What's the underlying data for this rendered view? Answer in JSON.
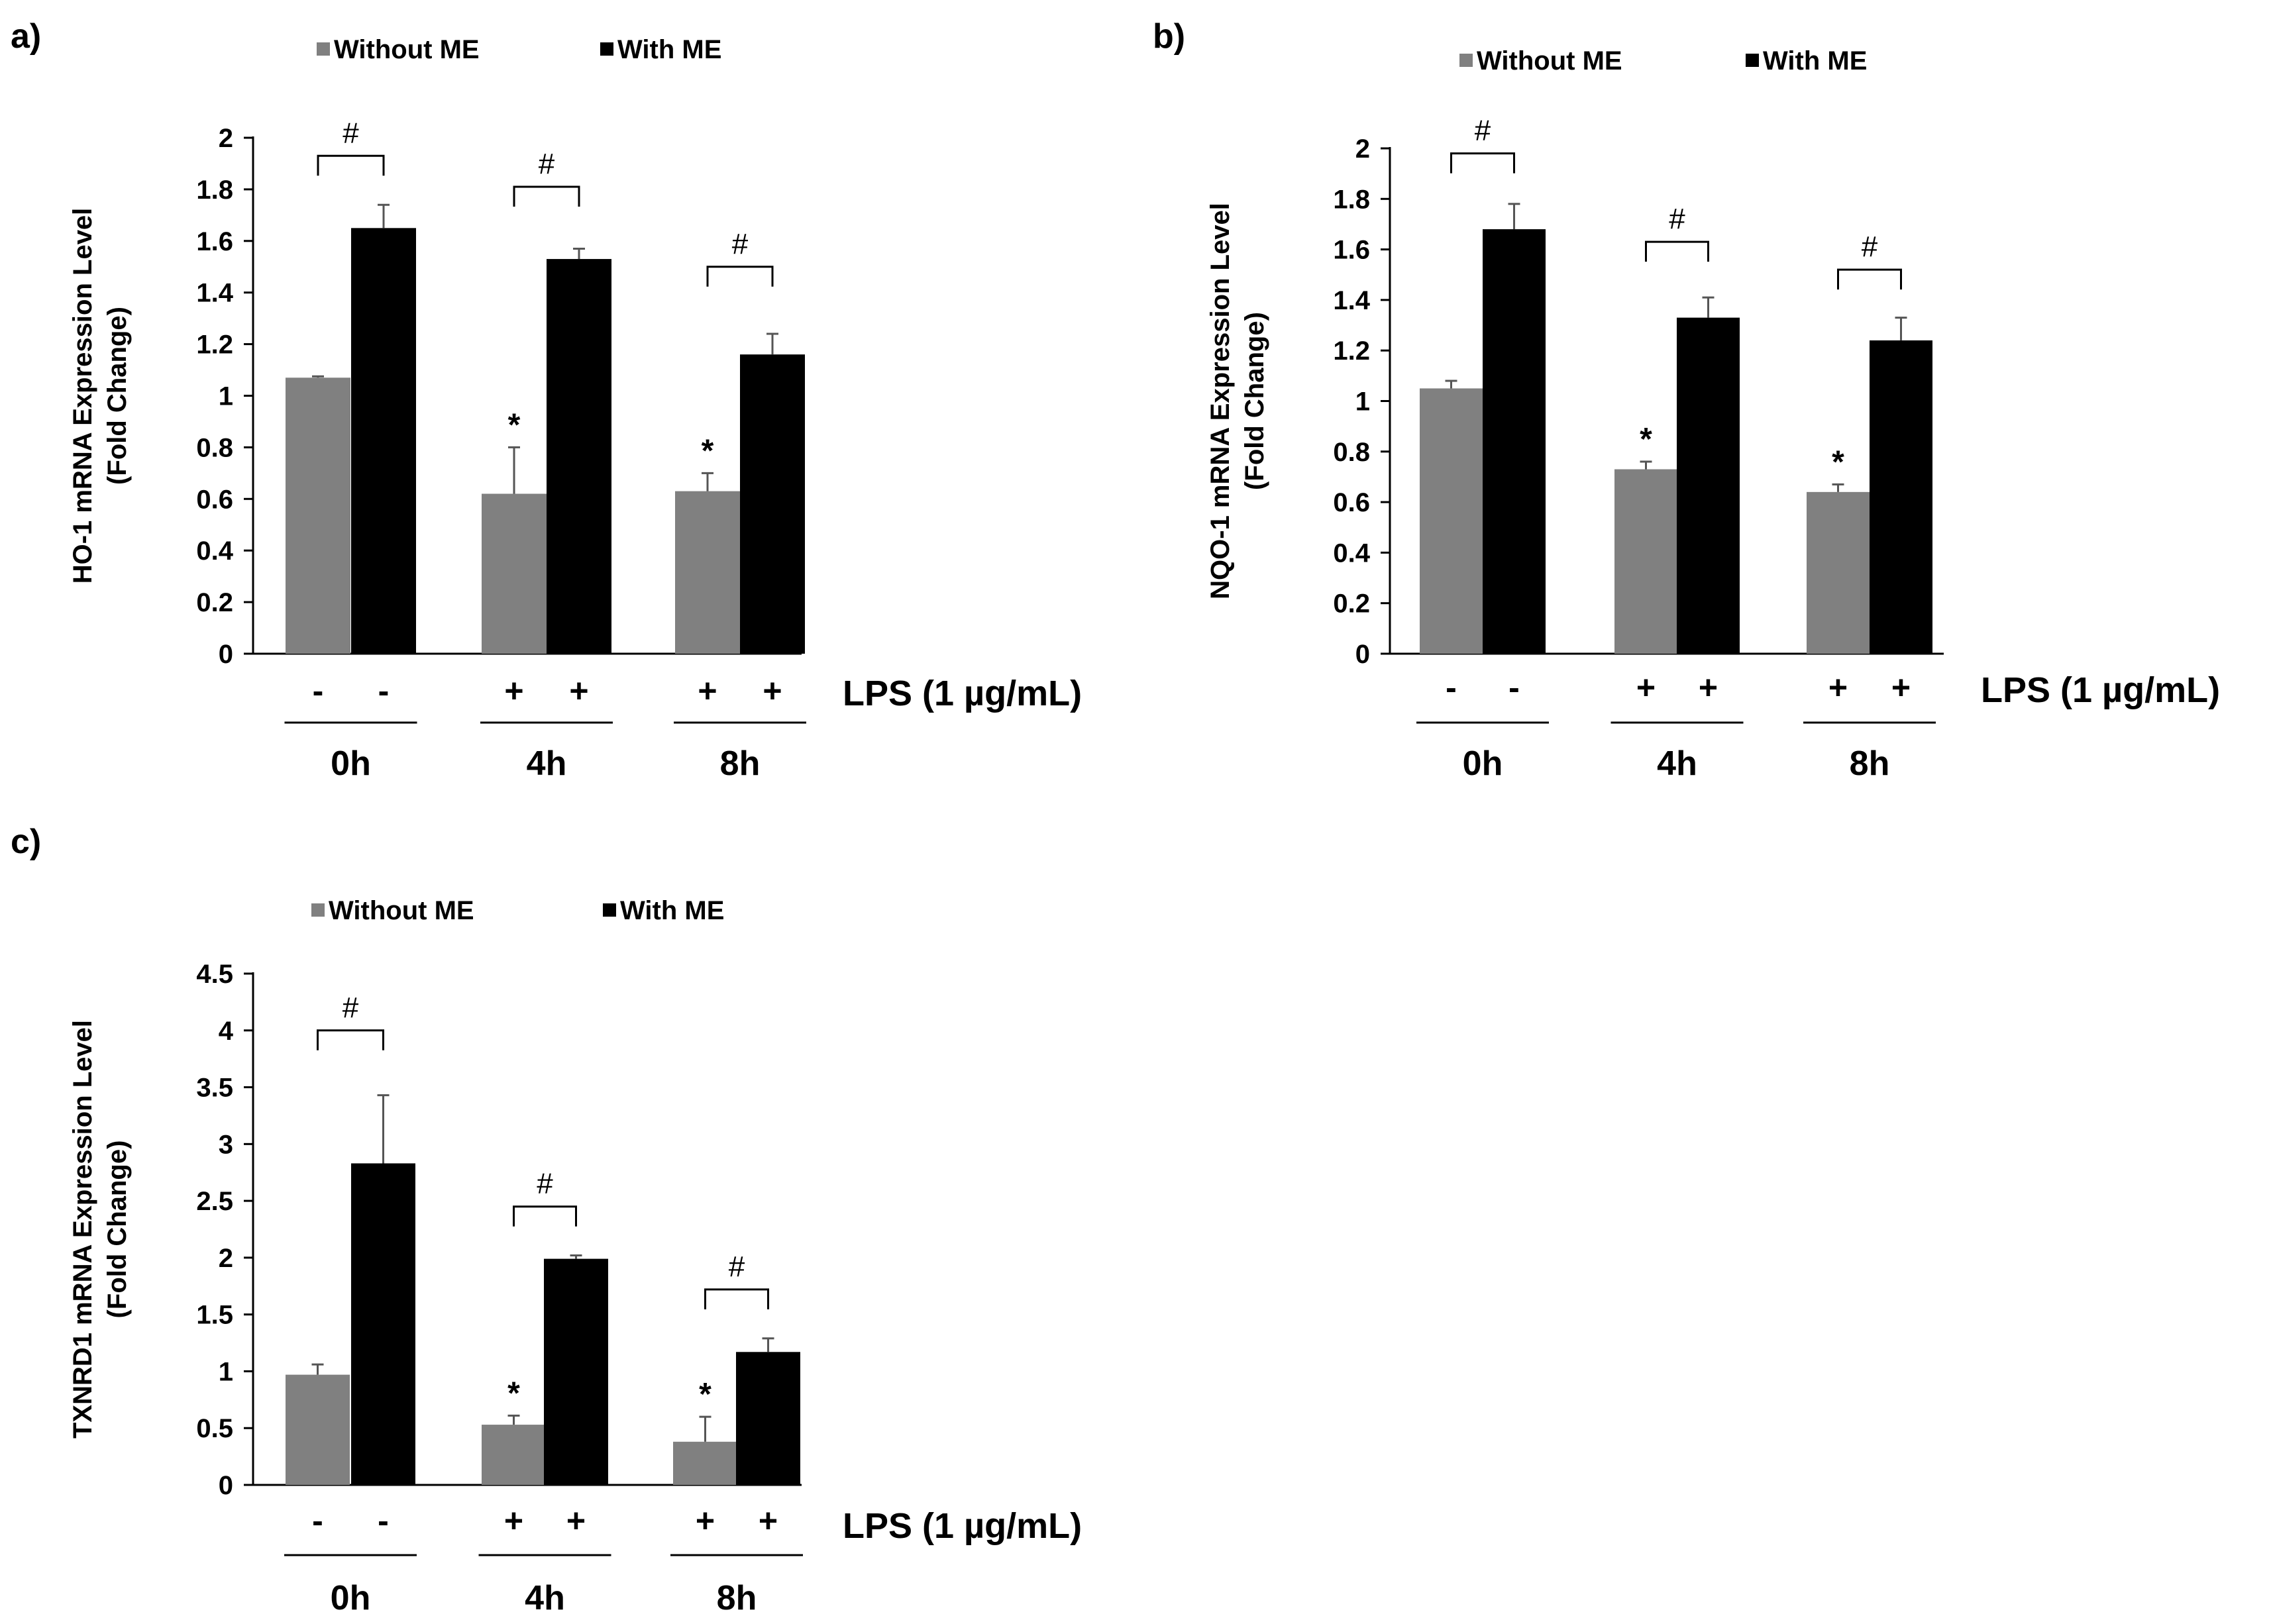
{
  "figure": {
    "title": "",
    "caption": ""
  },
  "chart_data": [
    {
      "type": "bar",
      "panel_label": "a)",
      "ylabel": "HO-1 mRNA Expression Level",
      "ylabel2": "(Fold Change)",
      "ylim": [
        0,
        2
      ],
      "yticks": [
        0,
        0.2,
        0.4,
        0.6,
        0.8,
        1,
        1.2,
        1.4,
        1.6,
        1.8,
        2
      ],
      "ytick_labels": [
        "0",
        "0.2",
        "0.4",
        "0.6",
        "0.8",
        "1",
        "1.2",
        "1.4",
        "1.6",
        "1.8",
        "2"
      ],
      "categories": [
        "0h",
        "4h",
        "8h"
      ],
      "lps_label": "LPS (1 µg/mL)",
      "lps_signs": [
        [
          "-",
          "-"
        ],
        [
          "+",
          "+"
        ],
        [
          "+",
          "+"
        ]
      ],
      "series": [
        {
          "name": "Without ME",
          "color": "#808080",
          "values": [
            1.07,
            0.62,
            0.63
          ],
          "errors": [
            0.005,
            0.18,
            0.07
          ],
          "annotations": [
            "",
            "*",
            "*"
          ]
        },
        {
          "name": "With ME",
          "color": "#000000",
          "values": [
            1.65,
            1.53,
            1.16
          ],
          "errors": [
            0.09,
            0.04,
            0.08
          ],
          "annotations": [
            "",
            "",
            ""
          ]
        }
      ],
      "brackets": [
        "#",
        "#",
        "#"
      ],
      "bracket_levels": [
        1.93,
        1.81,
        1.5
      ]
    },
    {
      "type": "bar",
      "panel_label": "b)",
      "ylabel": "NQO-1 mRNA Expression Level",
      "ylabel2": "(Fold Change)",
      "ylim": [
        0,
        2
      ],
      "yticks": [
        0,
        0.2,
        0.4,
        0.6,
        0.8,
        1,
        1.2,
        1.4,
        1.6,
        1.8,
        2
      ],
      "ytick_labels": [
        "0",
        "0.2",
        "0.4",
        "0.6",
        "0.8",
        "1",
        "1.2",
        "1.4",
        "1.6",
        "1.8",
        "2"
      ],
      "categories": [
        "0h",
        "4h",
        "8h"
      ],
      "lps_label": "LPS (1 µg/mL)",
      "lps_signs": [
        [
          "-",
          "-"
        ],
        [
          "+",
          "+"
        ],
        [
          "+",
          "+"
        ]
      ],
      "series": [
        {
          "name": "Without ME",
          "color": "#808080",
          "values": [
            1.05,
            0.73,
            0.64
          ],
          "errors": [
            0.03,
            0.03,
            0.03
          ],
          "annotations": [
            "",
            "*",
            "*"
          ]
        },
        {
          "name": "With ME",
          "color": "#000000",
          "values": [
            1.68,
            1.33,
            1.24
          ],
          "errors": [
            0.1,
            0.08,
            0.09
          ],
          "annotations": [
            "",
            "",
            ""
          ]
        }
      ],
      "brackets": [
        "#",
        "#",
        "#"
      ],
      "bracket_levels": [
        1.98,
        1.63,
        1.52
      ]
    },
    {
      "type": "bar",
      "panel_label": "c)",
      "ylabel": "TXNRD1 mRNA Expression Level",
      "ylabel2": "(Fold Change)",
      "ylim": [
        0,
        4.5
      ],
      "yticks": [
        0,
        0.5,
        1,
        1.5,
        2,
        2.5,
        3,
        3.5,
        4,
        4.5
      ],
      "ytick_labels": [
        "0",
        "0.5",
        "1",
        "1.5",
        "2",
        "2.5",
        "3",
        "3.5",
        "4",
        "4.5"
      ],
      "categories": [
        "0h",
        "4h",
        "8h"
      ],
      "lps_label": "LPS (1 µg/mL)",
      "lps_signs": [
        [
          "-",
          "-"
        ],
        [
          "+",
          "+"
        ],
        [
          "+",
          "+"
        ]
      ],
      "series": [
        {
          "name": "Without ME",
          "color": "#808080",
          "values": [
            0.97,
            0.53,
            0.38
          ],
          "errors": [
            0.09,
            0.08,
            0.22
          ],
          "annotations": [
            "",
            "*",
            "*"
          ]
        },
        {
          "name": "With ME",
          "color": "#000000",
          "values": [
            2.83,
            1.99,
            1.17
          ],
          "errors": [
            0.6,
            0.03,
            0.12
          ],
          "annotations": [
            "",
            "",
            ""
          ]
        }
      ],
      "brackets": [
        "#",
        "#",
        "#"
      ],
      "bracket_levels": [
        4.0,
        2.45,
        1.72
      ]
    }
  ]
}
